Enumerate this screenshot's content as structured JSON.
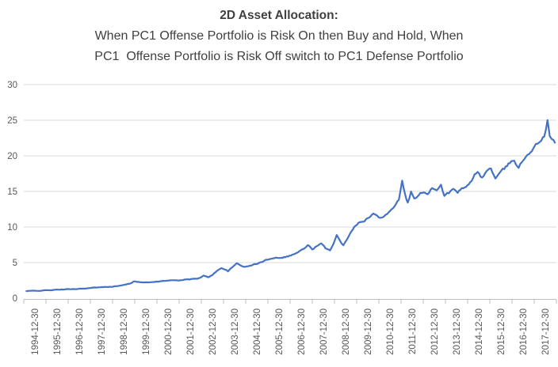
{
  "chart": {
    "title": "2D Asset Allocation:",
    "subtitle_line1": "When PC1 Offense Portfolio is Risk On then Buy and Hold, When",
    "subtitle_line2": "PC1  Offense Portfolio is Risk Off switch to PC1 Defense Portfolio"
  },
  "chart_data": {
    "type": "line",
    "title": "2D Asset Allocation: When PC1 Offense Portfolio is Risk On then Buy and Hold, When PC1 Offense Portfolio is Risk Off switch to PC1 Defense Portfolio",
    "xlabel": "",
    "ylabel": "",
    "ylim": [
      0,
      30
    ],
    "yticks": [
      0,
      5,
      10,
      15,
      20,
      25,
      30
    ],
    "grid": "horizontal",
    "legend": "none",
    "xtick_labels": [
      "1994-12-30",
      "1995-12-30",
      "1996-12-30",
      "1997-12-30",
      "1998-12-30",
      "1999-12-30",
      "2000-12-30",
      "2001-12-30",
      "2002-12-30",
      "2003-12-30",
      "2004-12-30",
      "2005-12-30",
      "2006-12-30",
      "2007-12-30",
      "2008-12-30",
      "2009-12-30",
      "2010-12-30",
      "2011-12-30",
      "2012-12-30",
      "2013-12-30",
      "2014-12-30",
      "2015-12-30",
      "2016-12-30",
      "2017-12-30"
    ],
    "x_axis_unit": "decimal_year",
    "x_first_label_year": 1995,
    "points": [
      [
        1994.62,
        1.0
      ],
      [
        1994.8,
        1.01
      ],
      [
        1995.0,
        1.04
      ],
      [
        1995.3,
        1.08
      ],
      [
        1995.6,
        1.12
      ],
      [
        1995.9,
        1.16
      ],
      [
        1996.2,
        1.21
      ],
      [
        1996.5,
        1.25
      ],
      [
        1996.8,
        1.3
      ],
      [
        1997.1,
        1.34
      ],
      [
        1997.4,
        1.4
      ],
      [
        1997.7,
        1.47
      ],
      [
        1998.0,
        1.53
      ],
      [
        1998.3,
        1.6
      ],
      [
        1998.6,
        1.68
      ],
      [
        1998.9,
        1.78
      ],
      [
        1999.1,
        1.9
      ],
      [
        1999.3,
        2.1
      ],
      [
        1999.45,
        2.35
      ],
      [
        1999.6,
        2.28
      ],
      [
        1999.8,
        2.24
      ],
      [
        2000.0,
        2.3
      ],
      [
        2000.2,
        2.22
      ],
      [
        2000.45,
        2.32
      ],
      [
        2000.7,
        2.4
      ],
      [
        2001.0,
        2.46
      ],
      [
        2001.3,
        2.52
      ],
      [
        2001.6,
        2.56
      ],
      [
        2001.9,
        2.62
      ],
      [
        2002.2,
        2.72
      ],
      [
        2002.45,
        2.85
      ],
      [
        2002.6,
        3.15
      ],
      [
        2002.8,
        2.92
      ],
      [
        2003.0,
        3.3
      ],
      [
        2003.2,
        3.8
      ],
      [
        2003.4,
        4.3
      ],
      [
        2003.55,
        4.05
      ],
      [
        2003.7,
        3.8
      ],
      [
        2003.9,
        4.3
      ],
      [
        2004.1,
        4.9
      ],
      [
        2004.3,
        4.6
      ],
      [
        2004.5,
        4.4
      ],
      [
        2004.75,
        4.6
      ],
      [
        2005.0,
        4.85
      ],
      [
        2005.25,
        5.1
      ],
      [
        2005.6,
        5.6
      ],
      [
        2005.85,
        5.7
      ],
      [
        2006.1,
        5.75
      ],
      [
        2006.35,
        5.85
      ],
      [
        2006.6,
        6.1
      ],
      [
        2006.85,
        6.45
      ],
      [
        2007.1,
        6.9
      ],
      [
        2007.3,
        7.4
      ],
      [
        2007.5,
        6.9
      ],
      [
        2007.7,
        7.3
      ],
      [
        2007.9,
        7.6
      ],
      [
        2008.1,
        7.0
      ],
      [
        2008.3,
        6.8
      ],
      [
        2008.45,
        7.6
      ],
      [
        2008.6,
        8.8
      ],
      [
        2008.75,
        8.0
      ],
      [
        2008.9,
        7.4
      ],
      [
        2009.05,
        8.2
      ],
      [
        2009.25,
        9.5
      ],
      [
        2009.45,
        10.3
      ],
      [
        2009.65,
        10.8
      ],
      [
        2009.85,
        11.0
      ],
      [
        2010.05,
        11.3
      ],
      [
        2010.25,
        11.9
      ],
      [
        2010.5,
        11.3
      ],
      [
        2010.75,
        11.7
      ],
      [
        2011.0,
        12.2
      ],
      [
        2011.2,
        13.0
      ],
      [
        2011.4,
        13.9
      ],
      [
        2011.55,
        16.4
      ],
      [
        2011.68,
        14.5
      ],
      [
        2011.8,
        13.4
      ],
      [
        2011.95,
        14.9
      ],
      [
        2012.1,
        13.9
      ],
      [
        2012.3,
        14.4
      ],
      [
        2012.5,
        15.0
      ],
      [
        2012.7,
        14.7
      ],
      [
        2012.9,
        15.6
      ],
      [
        2013.1,
        15.2
      ],
      [
        2013.3,
        16.0
      ],
      [
        2013.45,
        14.4
      ],
      [
        2013.65,
        14.8
      ],
      [
        2013.85,
        15.2
      ],
      [
        2014.05,
        14.9
      ],
      [
        2014.3,
        15.4
      ],
      [
        2014.55,
        15.8
      ],
      [
        2014.75,
        16.9
      ],
      [
        2014.95,
        17.9
      ],
      [
        2015.15,
        16.9
      ],
      [
        2015.35,
        17.8
      ],
      [
        2015.55,
        18.3
      ],
      [
        2015.75,
        16.8
      ],
      [
        2015.95,
        17.5
      ],
      [
        2016.15,
        18.1
      ],
      [
        2016.4,
        19.0
      ],
      [
        2016.6,
        19.4
      ],
      [
        2016.8,
        18.4
      ],
      [
        2017.0,
        19.4
      ],
      [
        2017.2,
        20.3
      ],
      [
        2017.45,
        21.0
      ],
      [
        2017.7,
        21.9
      ],
      [
        2017.95,
        22.8
      ],
      [
        2018.1,
        24.9
      ],
      [
        2018.2,
        22.8
      ],
      [
        2018.3,
        22.4
      ],
      [
        2018.43,
        21.85
      ]
    ],
    "colors": {
      "line": "#4472C4",
      "grid": "#D9D9D9",
      "axis": "#BFBFBF",
      "tick_text": "#595959",
      "title_text": "#404040",
      "background": "#FFFFFF"
    },
    "style": {
      "line_width": 2.2,
      "noise_base": 0.05,
      "noise_per_unit": 0.02,
      "noise_seed": 42
    }
  }
}
